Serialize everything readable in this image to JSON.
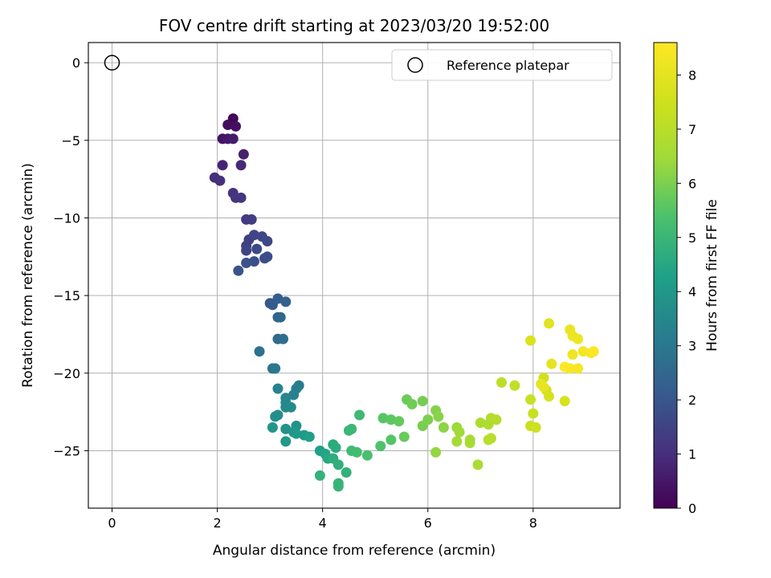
{
  "chart_data": {
    "type": "scatter",
    "title": "FOV centre drift starting at 2023/03/20 19:52:00",
    "xlabel": "Angular distance from reference (arcmin)",
    "ylabel": "Rotation from reference (arcmin)",
    "xlim": [
      -0.45,
      9.65
    ],
    "ylim": [
      -28.7,
      1.3
    ],
    "xticks": [
      0,
      2,
      4,
      6,
      8
    ],
    "yticks": [
      0,
      -5,
      -10,
      -15,
      -20,
      -25
    ],
    "grid": true,
    "colormap": "viridis",
    "colorbar": {
      "label": "Hours from first FF file",
      "min": 0,
      "max": 8.6,
      "ticks": [
        0,
        1,
        2,
        3,
        4,
        5,
        6,
        7,
        8
      ]
    },
    "reference_point": {
      "name": "Reference platepar",
      "x": 0,
      "y": 0
    },
    "legend": {
      "position": "top-right",
      "entries": [
        "Reference platepar"
      ]
    },
    "series": [
      {
        "points": [
          [
            2.3,
            -3.6,
            0.1
          ],
          [
            2.2,
            -4.0,
            0.2
          ],
          [
            2.35,
            -4.1,
            0.3
          ],
          [
            2.1,
            -4.9,
            0.4
          ],
          [
            2.2,
            -4.9,
            0.5
          ],
          [
            2.3,
            -4.9,
            0.6
          ],
          [
            2.5,
            -5.9,
            0.7
          ],
          [
            2.1,
            -6.6,
            0.8
          ],
          [
            2.45,
            -6.6,
            0.9
          ],
          [
            1.95,
            -7.4,
            1.0
          ],
          [
            2.05,
            -7.6,
            1.05
          ],
          [
            2.3,
            -8.4,
            1.1
          ],
          [
            2.35,
            -8.7,
            1.15
          ],
          [
            2.45,
            -8.7,
            1.2
          ],
          [
            2.55,
            -10.1,
            1.3
          ],
          [
            2.65,
            -10.1,
            1.35
          ],
          [
            2.6,
            -11.4,
            1.4
          ],
          [
            2.55,
            -11.8,
            1.45
          ],
          [
            2.55,
            -12.1,
            1.5
          ],
          [
            2.7,
            -11.1,
            1.55
          ],
          [
            2.85,
            -11.2,
            1.6
          ],
          [
            2.95,
            -11.5,
            1.65
          ],
          [
            2.75,
            -12.0,
            1.7
          ],
          [
            2.9,
            -12.6,
            1.75
          ],
          [
            2.95,
            -12.5,
            1.8
          ],
          [
            2.7,
            -12.8,
            1.85
          ],
          [
            2.55,
            -12.9,
            1.9
          ],
          [
            2.4,
            -13.4,
            1.95
          ],
          [
            3.0,
            -15.5,
            2.0
          ],
          [
            3.05,
            -15.6,
            2.1
          ],
          [
            3.15,
            -15.2,
            2.2
          ],
          [
            3.3,
            -15.4,
            2.3
          ],
          [
            3.15,
            -16.4,
            2.4
          ],
          [
            3.2,
            -16.4,
            2.5
          ],
          [
            3.15,
            -17.8,
            2.6
          ],
          [
            3.25,
            -17.8,
            2.7
          ],
          [
            2.8,
            -18.6,
            2.8
          ],
          [
            3.05,
            -19.7,
            2.9
          ],
          [
            3.1,
            -19.7,
            3.0
          ],
          [
            3.55,
            -20.8,
            3.1
          ],
          [
            3.5,
            -21.0,
            3.2
          ],
          [
            3.45,
            -21.4,
            3.3
          ],
          [
            3.15,
            -21.0,
            3.35
          ],
          [
            3.3,
            -21.6,
            3.4
          ],
          [
            3.3,
            -21.9,
            3.5
          ],
          [
            3.3,
            -22.2,
            3.55
          ],
          [
            3.4,
            -22.2,
            3.6
          ],
          [
            3.15,
            -22.7,
            3.65
          ],
          [
            3.1,
            -22.8,
            3.7
          ],
          [
            3.5,
            -23.4,
            3.8
          ],
          [
            3.3,
            -23.6,
            3.85
          ],
          [
            3.45,
            -23.8,
            3.9
          ],
          [
            3.05,
            -23.5,
            3.95
          ],
          [
            3.3,
            -24.4,
            4.0
          ],
          [
            3.5,
            -23.9,
            4.05
          ],
          [
            3.65,
            -24.0,
            4.1
          ],
          [
            3.75,
            -24.1,
            4.2
          ],
          [
            3.95,
            -25.0,
            4.3
          ],
          [
            4.05,
            -25.2,
            4.4
          ],
          [
            4.1,
            -25.5,
            4.5
          ],
          [
            4.2,
            -24.6,
            4.6
          ],
          [
            4.25,
            -24.8,
            4.65
          ],
          [
            4.2,
            -25.5,
            4.7
          ],
          [
            4.3,
            -25.9,
            4.75
          ],
          [
            4.45,
            -26.4,
            4.8
          ],
          [
            3.95,
            -26.6,
            4.85
          ],
          [
            4.3,
            -27.1,
            4.9
          ],
          [
            4.3,
            -27.3,
            4.95
          ],
          [
            4.5,
            -23.7,
            5.0
          ],
          [
            4.55,
            -23.6,
            5.05
          ],
          [
            4.7,
            -22.7,
            5.1
          ],
          [
            4.55,
            -25.0,
            5.15
          ],
          [
            4.65,
            -25.1,
            5.2
          ],
          [
            4.85,
            -25.3,
            5.3
          ],
          [
            5.1,
            -24.7,
            5.4
          ],
          [
            5.3,
            -24.3,
            5.5
          ],
          [
            5.15,
            -22.9,
            5.55
          ],
          [
            5.3,
            -23.0,
            5.6
          ],
          [
            5.45,
            -23.1,
            5.7
          ],
          [
            5.55,
            -24.1,
            5.75
          ],
          [
            5.6,
            -21.7,
            5.8
          ],
          [
            5.7,
            -22.0,
            5.85
          ],
          [
            5.9,
            -21.8,
            5.9
          ],
          [
            5.9,
            -23.4,
            5.95
          ],
          [
            6.0,
            -23.0,
            6.0
          ],
          [
            6.15,
            -22.4,
            6.1
          ],
          [
            6.2,
            -22.8,
            6.15
          ],
          [
            6.3,
            -23.5,
            6.2
          ],
          [
            6.15,
            -25.1,
            6.3
          ],
          [
            6.55,
            -23.5,
            6.4
          ],
          [
            6.6,
            -23.8,
            6.5
          ],
          [
            6.55,
            -24.4,
            6.55
          ],
          [
            6.8,
            -24.3,
            6.6
          ],
          [
            6.8,
            -24.5,
            6.65
          ],
          [
            6.95,
            -25.9,
            6.7
          ],
          [
            7.0,
            -23.2,
            6.75
          ],
          [
            7.15,
            -23.3,
            6.8
          ],
          [
            7.2,
            -22.9,
            6.85
          ],
          [
            7.3,
            -23.0,
            6.9
          ],
          [
            7.15,
            -24.3,
            6.95
          ],
          [
            7.2,
            -24.2,
            7.0
          ],
          [
            7.4,
            -20.6,
            7.1
          ],
          [
            7.65,
            -20.8,
            7.2
          ],
          [
            7.95,
            -21.7,
            7.3
          ],
          [
            8.0,
            -22.6,
            7.35
          ],
          [
            7.95,
            -23.4,
            7.4
          ],
          [
            8.05,
            -23.5,
            7.45
          ],
          [
            8.2,
            -20.3,
            7.5
          ],
          [
            8.25,
            -21.1,
            7.6
          ],
          [
            8.3,
            -21.5,
            7.65
          ],
          [
            8.6,
            -21.8,
            7.7
          ],
          [
            7.95,
            -17.9,
            7.8
          ],
          [
            8.3,
            -16.8,
            7.9
          ],
          [
            8.35,
            -19.4,
            8.0
          ],
          [
            8.15,
            -20.7,
            8.05
          ],
          [
            8.2,
            -20.9,
            8.1
          ],
          [
            8.7,
            -17.2,
            8.15
          ],
          [
            8.75,
            -17.6,
            8.2
          ],
          [
            8.85,
            -17.8,
            8.25
          ],
          [
            8.75,
            -18.8,
            8.3
          ],
          [
            8.95,
            -18.6,
            8.35
          ],
          [
            8.85,
            -19.7,
            8.4
          ],
          [
            8.7,
            -19.7,
            8.45
          ],
          [
            9.1,
            -18.7,
            8.5
          ],
          [
            9.15,
            -18.6,
            8.55
          ],
          [
            8.6,
            -19.6,
            8.6
          ]
        ]
      }
    ]
  }
}
